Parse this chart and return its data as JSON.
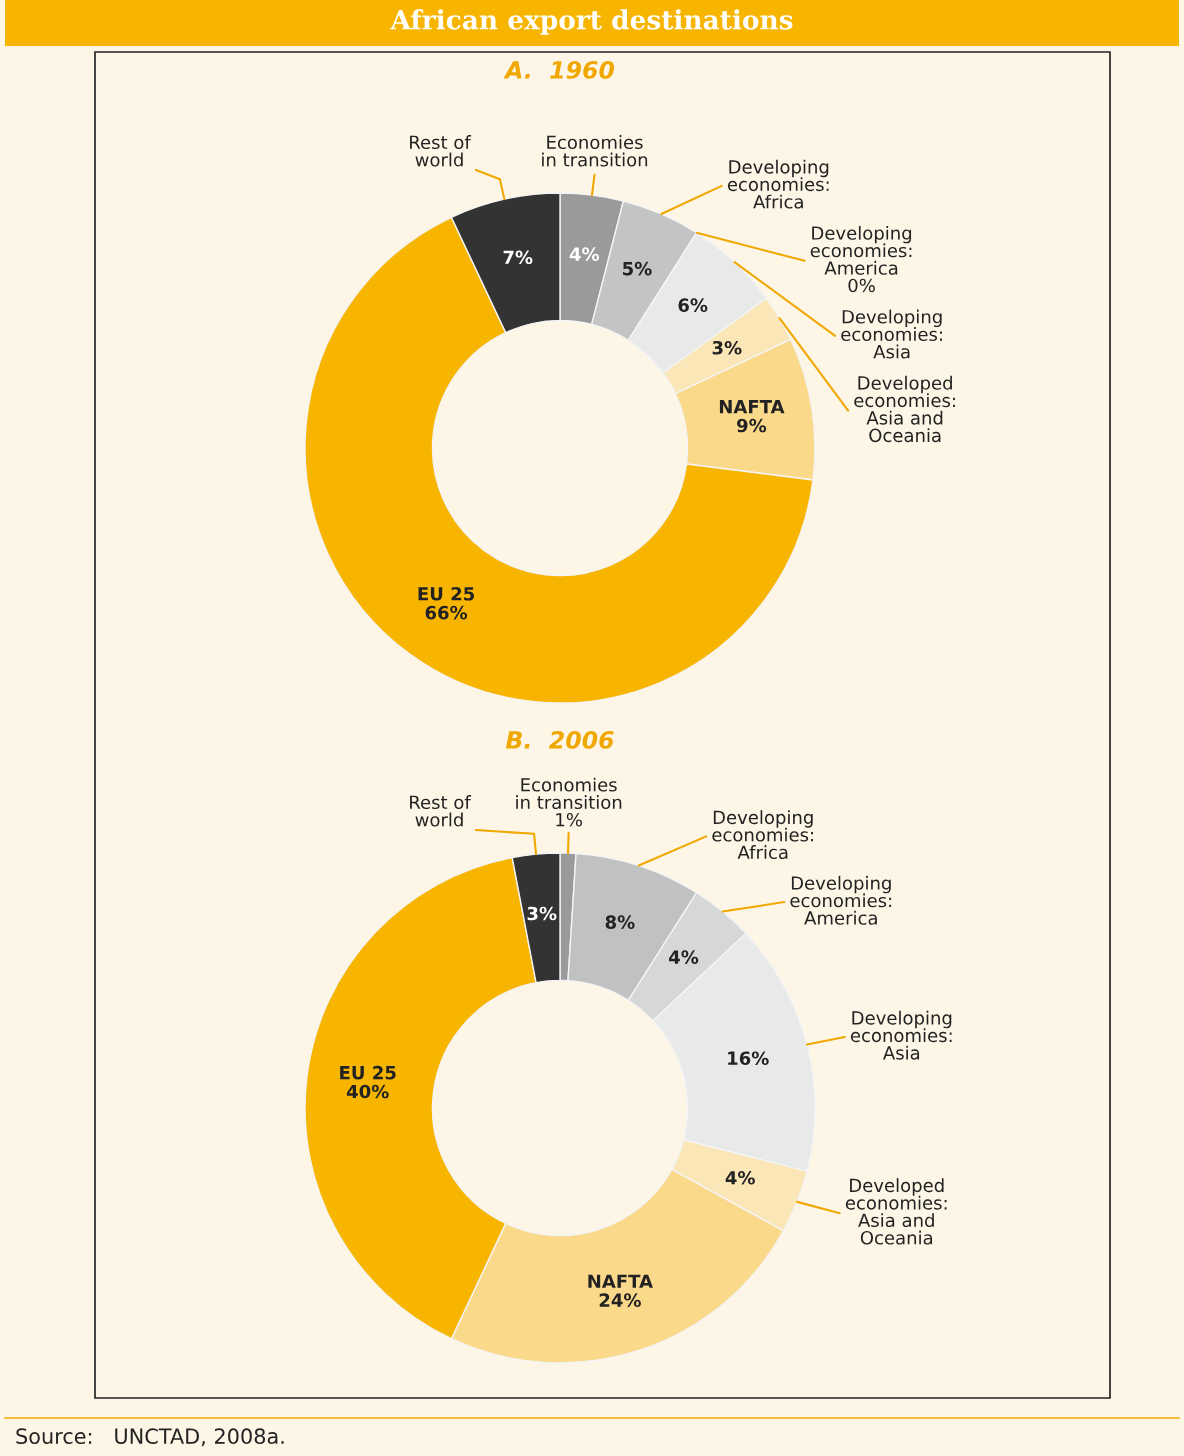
{
  "chart_data": [
    {
      "type": "donut",
      "title": "African export destinations",
      "subtitle": "A.  1960",
      "categories": [
        "Economies\nin transition",
        "Developing\neconomies:\nAfrica",
        "Developing\neconomies:\nAmerica",
        "Developing\neconomies:\nAsia",
        "Developed\neconomies:\nAsia and\nOceania",
        "NAFTA",
        "EU 25",
        "Rest of\nworld"
      ],
      "values": [
        4,
        5,
        0,
        6,
        3,
        9,
        66,
        7
      ],
      "value_labels": [
        "4%",
        "5%",
        "0%",
        "6%",
        "3%",
        "9%",
        "66%",
        "7%"
      ],
      "colors": [
        "#9a9a9a",
        "#c4c4c4",
        "#d6d7d7",
        "#e8e9e9",
        "#fbe6b8",
        "#fbd98a",
        "#f7b500",
        "#333333"
      ]
    },
    {
      "type": "donut",
      "subtitle": "B.  2006",
      "categories": [
        "Economies\nin transition",
        "Developing\neconomies:\nAfrica",
        "Developing\neconomies:\nAmerica",
        "Developing\neconomies:\nAsia",
        "Developed\neconomies:\nAsia and\nOceania",
        "NAFTA",
        "EU 25",
        "Rest of\nworld"
      ],
      "values": [
        1,
        8,
        4,
        16,
        4,
        24,
        40,
        3
      ],
      "value_labels": [
        "1%",
        "8%",
        "4%",
        "16%",
        "4%",
        "24%",
        "40%",
        "3%"
      ],
      "colors": [
        "#9a9a9a",
        "#c0c1c1",
        "#d6d7d7",
        "#e8e9e9",
        "#fbe6b8",
        "#fbd98a",
        "#f7b500",
        "#333333"
      ],
      "annotations": [
        "Source:   UNCTAD, 2008a."
      ]
    }
  ]
}
